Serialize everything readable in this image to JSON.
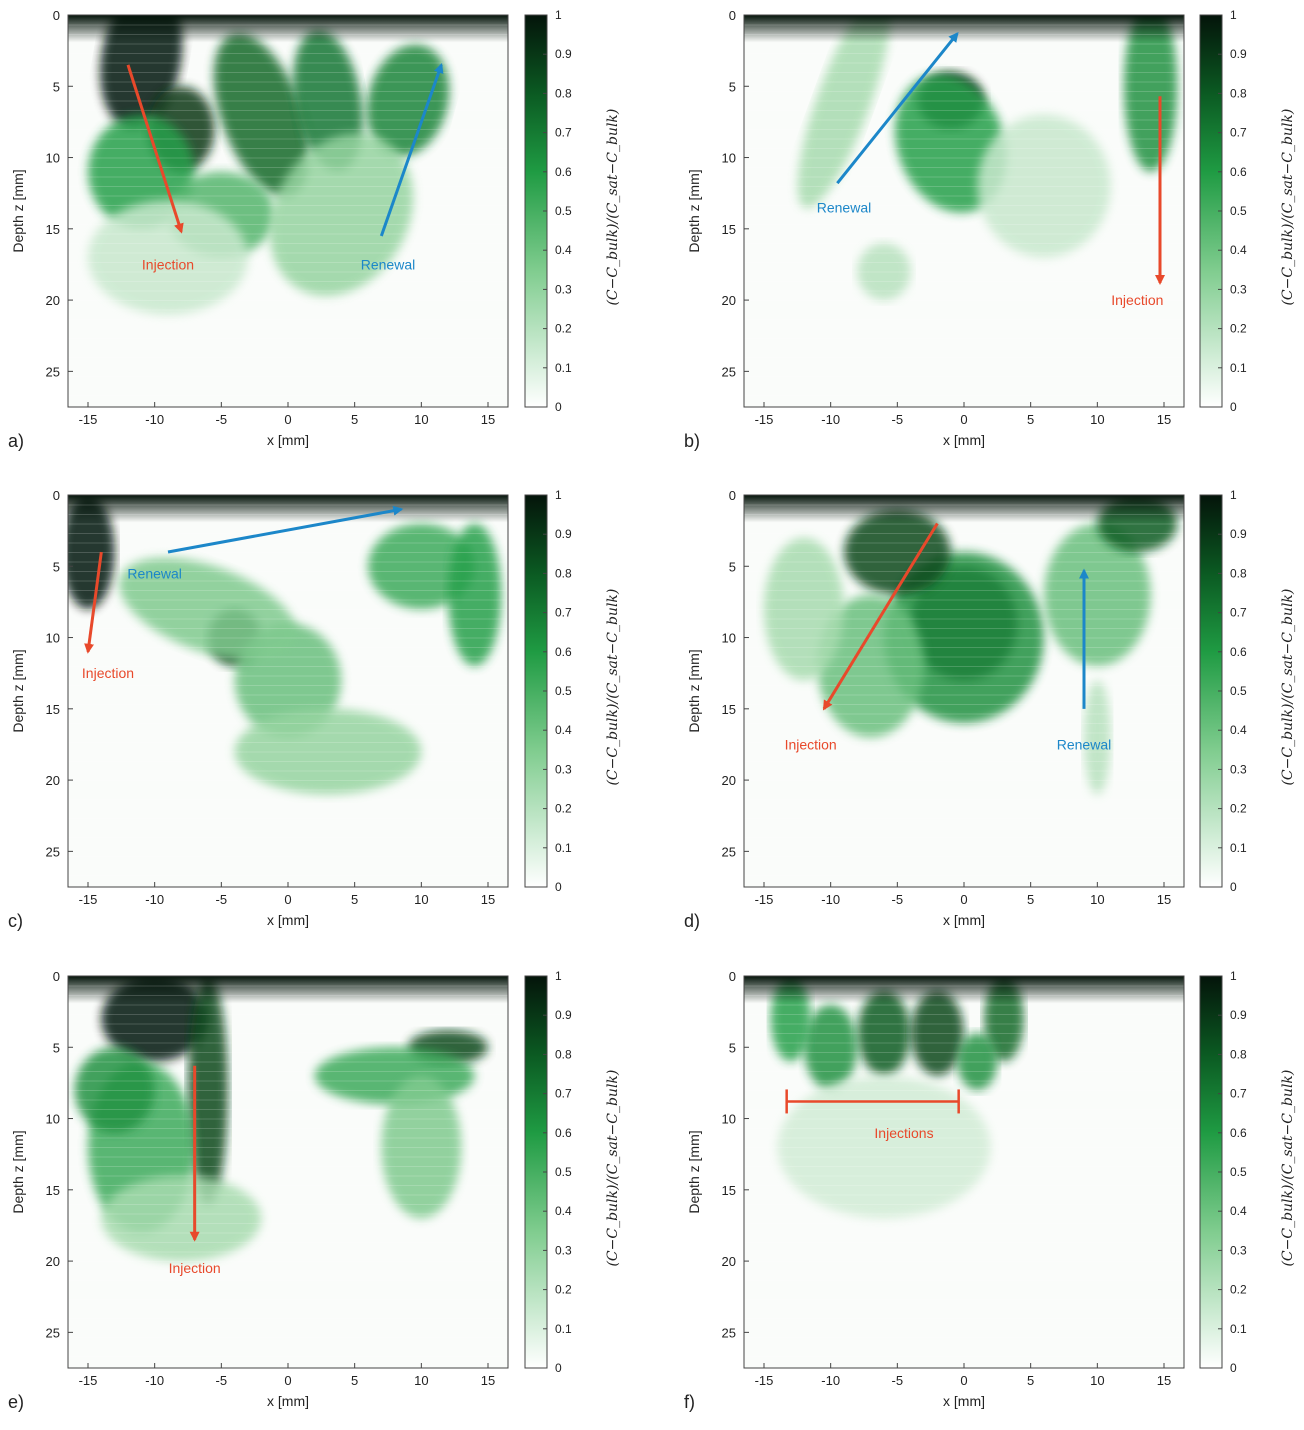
{
  "colors": {
    "dark": "#061a0c",
    "mid": "#1f9b43",
    "light": "#e8f5ea",
    "arrow_red": "#e8492b",
    "arrow_blue": "#1c87c9"
  },
  "colorbar": {
    "ticks": [
      "0",
      "0.1",
      "0.2",
      "0.3",
      "0.4",
      "0.5",
      "0.6",
      "0.7",
      "0.8",
      "0.9",
      "1"
    ],
    "title": "(C−C_bulk)/(C_sat−C_bulk)"
  },
  "axes": {
    "xlabel": "x [mm]",
    "ylabel": "Depth z [mm]",
    "xticks": [
      "-15",
      "-10",
      "-5",
      "0",
      "5",
      "10",
      "15"
    ],
    "zticks": [
      "0",
      "5",
      "10",
      "15",
      "20",
      "25"
    ]
  },
  "panels": [
    {
      "letter": "a)",
      "annotations": [
        {
          "text": "Injection",
          "color": "red",
          "x": -9,
          "z": 17.5
        },
        {
          "text": "Renewal",
          "color": "blue",
          "x": 7.5,
          "z": 17.5
        }
      ]
    },
    {
      "letter": "b)",
      "annotations": [
        {
          "text": "Renewal",
          "color": "blue",
          "x": -9,
          "z": 13.5
        },
        {
          "text": "Injection",
          "color": "red",
          "x": 13,
          "z": 20
        }
      ]
    },
    {
      "letter": "c)",
      "annotations": [
        {
          "text": "Renewal",
          "color": "blue",
          "x": -10,
          "z": 5.5
        },
        {
          "text": "Injection",
          "color": "red",
          "x": -13.5,
          "z": 12.5
        }
      ]
    },
    {
      "letter": "d)",
      "annotations": [
        {
          "text": "Injection",
          "color": "red",
          "x": -11.5,
          "z": 17.5
        },
        {
          "text": "Renewal",
          "color": "blue",
          "x": 9,
          "z": 17.5
        }
      ]
    },
    {
      "letter": "e)",
      "annotations": [
        {
          "text": "Injection",
          "color": "red",
          "x": -7,
          "z": 20.5
        }
      ]
    },
    {
      "letter": "f)",
      "annotations": [
        {
          "text": "Injections",
          "color": "red",
          "x": -4.5,
          "z": 11
        }
      ]
    }
  ]
}
